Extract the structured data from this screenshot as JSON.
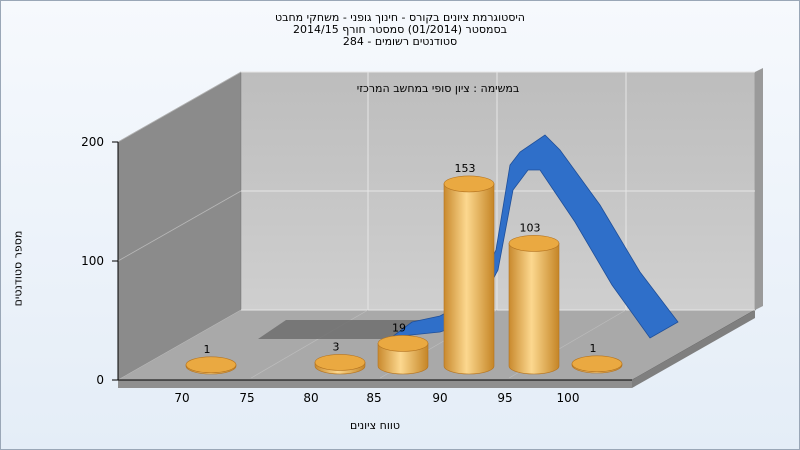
{
  "title_lines": [
    "היסטוגרמת ציונים בקורס - חינוך גופני - משחקי מחבט",
    "בסמסטר  (01/2014)  סמסטר חורף 2014/15",
    "סטודנטים רשומים - 284"
  ],
  "chart_data": {
    "type": "bar",
    "subtitle": "במשימה : ציון סופי במחשב המרכזי",
    "xlabel": "טווח ציונים",
    "ylabel": "מספר סטודנטים",
    "ylim": [
      0,
      200
    ],
    "y_ticks": [
      "0",
      "100",
      "200"
    ],
    "x_ticks": [
      "70",
      "75",
      "80",
      "85",
      "90",
      "95",
      "100"
    ],
    "categories": [
      "70",
      "80",
      "85",
      "90",
      "95",
      "100"
    ],
    "series": [
      {
        "values": [
          1,
          3,
          19,
          153,
          103,
          1
        ]
      }
    ],
    "grid": true,
    "colors": {
      "bar": "#e8a53c",
      "curve": "#2f6fc9",
      "back_wall": "#c4c4c4",
      "side_wall": "#8a8a8a",
      "floor": "#a6a6a6"
    }
  }
}
